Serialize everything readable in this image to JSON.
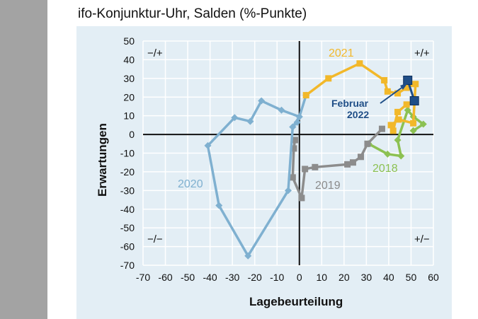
{
  "title": "ifo-Konjunktur-Uhr, Salden (%-Punkte)",
  "chart_data": {
    "type": "line",
    "title": "ifo-Konjunktur-Uhr, Salden (%-Punkte)",
    "xlabel": "Lagebeurteilung",
    "ylabel": "Erwartungen",
    "xlim": [
      -70,
      60
    ],
    "ylim": [
      -70,
      50
    ],
    "xticks": [
      -70,
      -60,
      -50,
      -40,
      -30,
      -20,
      -10,
      0,
      10,
      20,
      30,
      40,
      50,
      60
    ],
    "yticks": [
      50,
      40,
      30,
      20,
      10,
      0,
      -10,
      -20,
      -30,
      -40,
      -50,
      -60,
      -70
    ],
    "grid": true,
    "quadrant_labels": {
      "top_left": "−/+",
      "top_right": "+/+",
      "bottom_left": "−/−",
      "bottom_right": "+/−"
    },
    "series": [
      {
        "name": "2018",
        "color": "#8cc152",
        "marker": "diamond",
        "points": [
          [
            51,
            2
          ],
          [
            55.5,
            5.5
          ],
          [
            51,
            9.5
          ],
          [
            48.5,
            13
          ],
          [
            44,
            -3
          ],
          [
            45.5,
            -11.5
          ],
          [
            39.5,
            -10.5
          ],
          [
            31,
            -5
          ]
        ]
      },
      {
        "name": "2019",
        "color": "#8c8c8c",
        "marker": "square",
        "points": [
          [
            37,
            3
          ],
          [
            30.5,
            -5
          ],
          [
            27.5,
            -12
          ],
          [
            24,
            -15
          ],
          [
            21.5,
            -16
          ],
          [
            7,
            -17.5
          ],
          [
            2.5,
            -18.5
          ],
          [
            1,
            -34
          ],
          [
            -3,
            -23
          ],
          [
            -2.5,
            -7.5
          ],
          [
            -2,
            -3
          ]
        ]
      },
      {
        "name": "2020",
        "color": "#7fb0d0",
        "marker": "diamond",
        "points": [
          [
            -3,
            4
          ],
          [
            0,
            9.5
          ],
          [
            -8,
            13
          ],
          [
            -17,
            18
          ],
          [
            -22,
            7
          ],
          [
            -29,
            9
          ],
          [
            -41,
            -6
          ],
          [
            -36,
            -38
          ],
          [
            -23,
            -65
          ],
          [
            -5,
            -30
          ],
          [
            -3,
            4
          ],
          [
            -1,
            6.5
          ],
          [
            0,
            9.5
          ],
          [
            3,
            21
          ]
        ]
      },
      {
        "name": "2021",
        "color": "#f2b82a",
        "marker": "square",
        "points": [
          [
            3,
            21
          ],
          [
            13,
            30
          ],
          [
            27,
            38
          ],
          [
            38,
            29
          ],
          [
            39.5,
            23
          ],
          [
            44,
            22
          ],
          [
            48,
            25
          ],
          [
            52,
            27
          ],
          [
            51,
            6
          ],
          [
            44.5,
            8
          ],
          [
            41,
            5
          ],
          [
            42,
            2
          ],
          [
            44,
            12
          ],
          [
            48,
            16
          ],
          [
            51.5,
            18
          ]
        ]
      },
      {
        "name": "Februar 2022",
        "label_line1": "Februar",
        "label_line2": "2022",
        "color": "#1f4e87",
        "marker": "square",
        "points": [
          [
            51.5,
            18
          ],
          [
            48.5,
            29
          ]
        ]
      }
    ]
  }
}
